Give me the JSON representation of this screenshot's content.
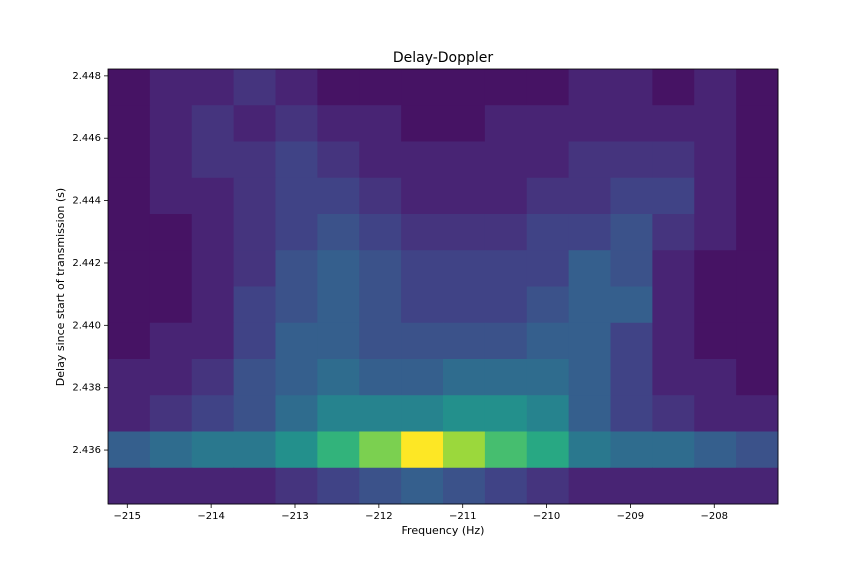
{
  "chart_data": {
    "type": "heatmap",
    "title": "Delay-Doppler",
    "x_label": "Frequency (Hz)",
    "y_label": "Delay since start of transmission (s)",
    "colormap": "viridis",
    "xlim": [
      -215.23,
      -207.24
    ],
    "ylim": [
      2.43427,
      2.44822
    ],
    "xticks": [
      {
        "value": -215,
        "label": "−215"
      },
      {
        "value": -214,
        "label": "−214"
      },
      {
        "value": -213,
        "label": "−213"
      },
      {
        "value": -212,
        "label": "−212"
      },
      {
        "value": -211,
        "label": "−211"
      },
      {
        "value": -210,
        "label": "−210"
      },
      {
        "value": -209,
        "label": "−209"
      },
      {
        "value": -208,
        "label": "−208"
      }
    ],
    "yticks": [
      2.436,
      2.438,
      {
        "value": 2.44,
        "label": "2.440"
      },
      2.442,
      2.444,
      2.446,
      2.448
    ],
    "values": [
      [
        0.05,
        0.1,
        0.1,
        0.15,
        0.1,
        0.05,
        0.05,
        0.05,
        0.05,
        0.05,
        0.05,
        0.1,
        0.1,
        0.05,
        0.1,
        0.05
      ],
      [
        0.05,
        0.1,
        0.15,
        0.1,
        0.15,
        0.1,
        0.1,
        0.05,
        0.05,
        0.1,
        0.1,
        0.1,
        0.1,
        0.1,
        0.1,
        0.05
      ],
      [
        0.05,
        0.1,
        0.15,
        0.15,
        0.2,
        0.15,
        0.1,
        0.1,
        0.1,
        0.1,
        0.1,
        0.15,
        0.15,
        0.15,
        0.1,
        0.05
      ],
      [
        0.05,
        0.1,
        0.1,
        0.15,
        0.2,
        0.2,
        0.15,
        0.1,
        0.1,
        0.1,
        0.15,
        0.15,
        0.2,
        0.2,
        0.1,
        0.05
      ],
      [
        0.05,
        0.05,
        0.1,
        0.15,
        0.2,
        0.25,
        0.2,
        0.15,
        0.15,
        0.15,
        0.2,
        0.2,
        0.25,
        0.15,
        0.1,
        0.05
      ],
      [
        0.05,
        0.05,
        0.1,
        0.15,
        0.25,
        0.3,
        0.25,
        0.2,
        0.2,
        0.2,
        0.2,
        0.3,
        0.25,
        0.1,
        0.05,
        0.05
      ],
      [
        0.05,
        0.05,
        0.1,
        0.2,
        0.25,
        0.3,
        0.25,
        0.2,
        0.2,
        0.2,
        0.25,
        0.3,
        0.3,
        0.1,
        0.05,
        0.05
      ],
      [
        0.05,
        0.1,
        0.1,
        0.2,
        0.3,
        0.3,
        0.25,
        0.25,
        0.25,
        0.25,
        0.3,
        0.3,
        0.2,
        0.1,
        0.05,
        0.05
      ],
      [
        0.1,
        0.1,
        0.15,
        0.25,
        0.3,
        0.35,
        0.3,
        0.3,
        0.35,
        0.35,
        0.35,
        0.3,
        0.2,
        0.1,
        0.1,
        0.05
      ],
      [
        0.1,
        0.15,
        0.2,
        0.25,
        0.35,
        0.45,
        0.45,
        0.45,
        0.5,
        0.5,
        0.45,
        0.3,
        0.2,
        0.15,
        0.1,
        0.1
      ],
      [
        0.3,
        0.35,
        0.4,
        0.4,
        0.5,
        0.65,
        0.8,
        1.0,
        0.85,
        0.7,
        0.6,
        0.4,
        0.35,
        0.35,
        0.3,
        0.25
      ],
      [
        0.1,
        0.1,
        0.1,
        0.1,
        0.15,
        0.2,
        0.25,
        0.3,
        0.25,
        0.2,
        0.15,
        0.1,
        0.1,
        0.1,
        0.1,
        0.1
      ]
    ]
  }
}
